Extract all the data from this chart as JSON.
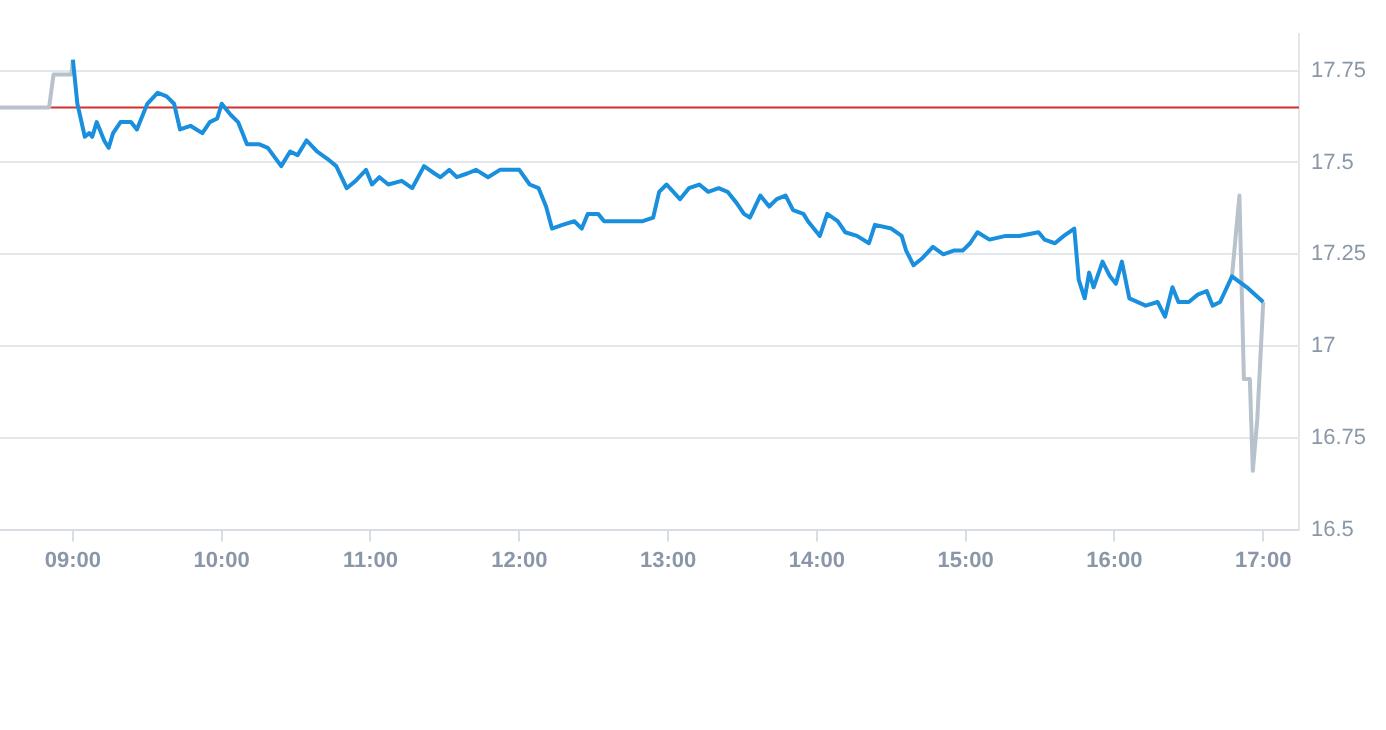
{
  "chart_data": {
    "type": "line",
    "marker": "none",
    "grid": "y",
    "xlim": [
      8.51,
      17.24
    ],
    "ylim": [
      16.5,
      17.85
    ],
    "xticks": [
      {
        "value": 9,
        "label": "09:00"
      },
      {
        "value": 10,
        "label": "10:00"
      },
      {
        "value": 11,
        "label": "11:00"
      },
      {
        "value": 12,
        "label": "12:00"
      },
      {
        "value": 13,
        "label": "13:00"
      },
      {
        "value": 14,
        "label": "14:00"
      },
      {
        "value": 15,
        "label": "15:00"
      },
      {
        "value": 16,
        "label": "16:00"
      },
      {
        "value": 17,
        "label": "17:00"
      }
    ],
    "yticks": [
      16.5,
      16.75,
      17,
      17.25,
      17.5,
      17.75
    ],
    "ref_lines": [
      {
        "axis": "y",
        "value": 17.65,
        "color": "#d0312d"
      }
    ],
    "series": [
      {
        "color": "#b8c2cc",
        "x": [
          8.51,
          8.84,
          8.87,
          8.99,
          9.0
        ],
        "values": [
          17.65,
          17.65,
          17.74,
          17.74,
          17.78
        ]
      },
      {
        "color": "#b8c2cc",
        "x": [
          16.79,
          16.84,
          16.87,
          16.91,
          16.93,
          16.96,
          17.0
        ],
        "values": [
          17.19,
          17.41,
          16.91,
          16.91,
          16.66,
          16.8,
          17.12
        ]
      },
      {
        "color": "#1a8fdd",
        "x": [
          9.0,
          9.03,
          9.08,
          9.11,
          9.13,
          9.16,
          9.21,
          9.24,
          9.27,
          9.32,
          9.39,
          9.43,
          9.5,
          9.57,
          9.63,
          9.68,
          9.72,
          9.79,
          9.83,
          9.87,
          9.92,
          9.97,
          10.0,
          10.06,
          10.11,
          10.17,
          10.25,
          10.31,
          10.4,
          10.46,
          10.51,
          10.57,
          10.64,
          10.71,
          10.77,
          10.84,
          10.9,
          10.97,
          11.01,
          11.06,
          11.12,
          11.21,
          11.28,
          11.36,
          11.43,
          11.47,
          11.53,
          11.58,
          11.65,
          11.71,
          11.79,
          11.87,
          12.0,
          12.07,
          12.13,
          12.18,
          12.22,
          12.29,
          12.37,
          12.42,
          12.46,
          12.53,
          12.57,
          12.68,
          12.83,
          12.9,
          12.94,
          12.99,
          13.08,
          13.14,
          13.21,
          13.27,
          13.34,
          13.4,
          13.46,
          13.51,
          13.55,
          13.62,
          13.68,
          13.73,
          13.79,
          13.84,
          13.91,
          13.94,
          14.02,
          14.07,
          14.14,
          14.19,
          14.27,
          14.35,
          14.39,
          14.5,
          14.57,
          14.6,
          14.65,
          14.71,
          14.78,
          14.85,
          14.92,
          14.98,
          15.03,
          15.08,
          15.16,
          15.27,
          15.36,
          15.49,
          15.53,
          15.6,
          15.66,
          15.73,
          15.76,
          15.8,
          15.83,
          15.86,
          15.92,
          15.97,
          16.01,
          16.05,
          16.1,
          16.21,
          16.29,
          16.34,
          16.39,
          16.43,
          16.5,
          16.56,
          16.62,
          16.66,
          16.71,
          16.79,
          16.89,
          17.0
        ],
        "values": [
          17.78,
          17.66,
          17.57,
          17.58,
          17.57,
          17.61,
          17.56,
          17.54,
          17.58,
          17.61,
          17.61,
          17.59,
          17.66,
          17.69,
          17.68,
          17.66,
          17.59,
          17.6,
          17.59,
          17.58,
          17.61,
          17.62,
          17.66,
          17.63,
          17.61,
          17.55,
          17.55,
          17.54,
          17.49,
          17.53,
          17.52,
          17.56,
          17.53,
          17.51,
          17.49,
          17.43,
          17.45,
          17.48,
          17.44,
          17.46,
          17.44,
          17.45,
          17.43,
          17.49,
          17.47,
          17.46,
          17.48,
          17.46,
          17.47,
          17.48,
          17.46,
          17.48,
          17.48,
          17.44,
          17.43,
          17.38,
          17.32,
          17.33,
          17.34,
          17.32,
          17.36,
          17.36,
          17.34,
          17.34,
          17.34,
          17.35,
          17.42,
          17.44,
          17.4,
          17.43,
          17.44,
          17.42,
          17.43,
          17.42,
          17.39,
          17.36,
          17.35,
          17.41,
          17.38,
          17.4,
          17.41,
          17.37,
          17.36,
          17.34,
          17.3,
          17.36,
          17.34,
          17.31,
          17.3,
          17.28,
          17.33,
          17.32,
          17.3,
          17.26,
          17.22,
          17.24,
          17.27,
          17.25,
          17.26,
          17.26,
          17.28,
          17.31,
          17.29,
          17.3,
          17.3,
          17.31,
          17.29,
          17.28,
          17.3,
          17.32,
          17.18,
          17.13,
          17.2,
          17.16,
          17.23,
          17.19,
          17.17,
          17.23,
          17.13,
          17.11,
          17.12,
          17.08,
          17.16,
          17.12,
          17.12,
          17.14,
          17.15,
          17.11,
          17.12,
          17.19,
          17.16,
          17.12
        ]
      }
    ]
  }
}
